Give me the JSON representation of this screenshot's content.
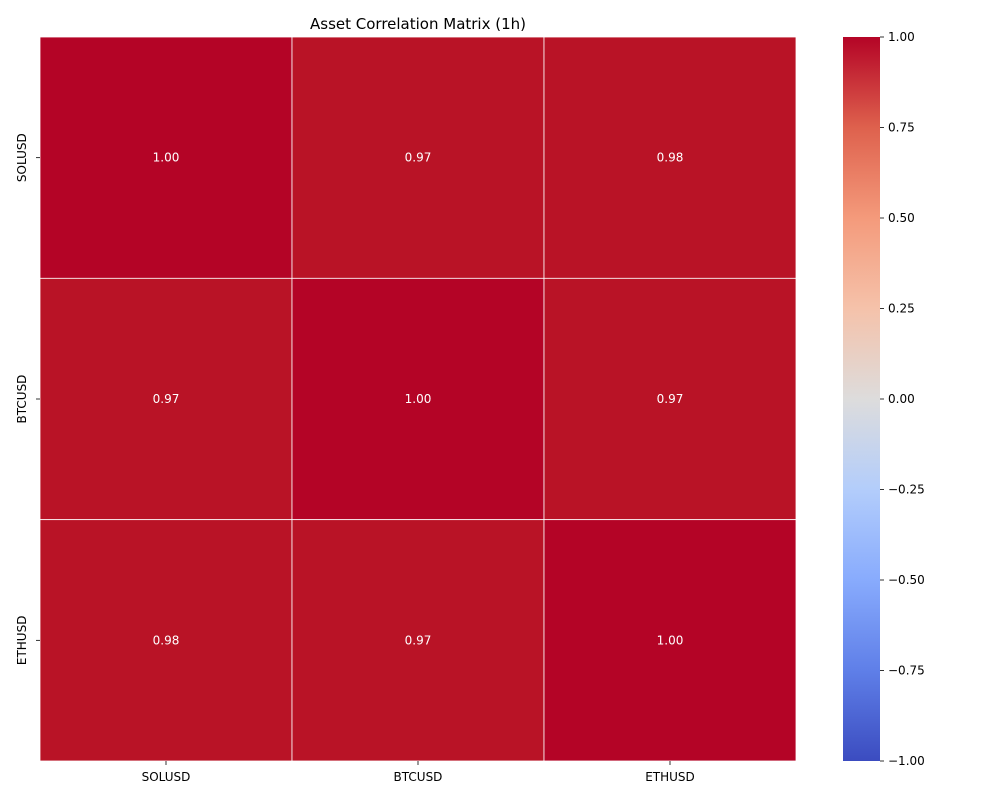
{
  "chart_data": {
    "type": "heatmap",
    "title": "Asset Correlation Matrix (1h)",
    "xlabel": "",
    "ylabel": "",
    "x_categories": [
      "SOLUSD",
      "BTCUSD",
      "ETHUSD"
    ],
    "y_categories": [
      "SOLUSD",
      "BTCUSD",
      "ETHUSD"
    ],
    "values": [
      [
        1.0,
        0.97,
        0.98
      ],
      [
        0.97,
        1.0,
        0.97
      ],
      [
        0.98,
        0.97,
        1.0
      ]
    ],
    "value_format": "0.00",
    "colormap": "coolwarm",
    "vmin": -1,
    "vmax": 1,
    "colorbar": {
      "ticks": [
        1.0,
        0.75,
        0.5,
        0.25,
        0.0,
        -0.25,
        -0.5,
        -0.75,
        -1.0
      ],
      "tick_labels": [
        "1.00",
        "0.75",
        "0.50",
        "0.25",
        "0.00",
        "−0.25",
        "−0.50",
        "−0.75",
        "−1.00"
      ]
    },
    "cell_colors": {
      "high": "#b40426",
      "near_high": "#b91326"
    }
  }
}
